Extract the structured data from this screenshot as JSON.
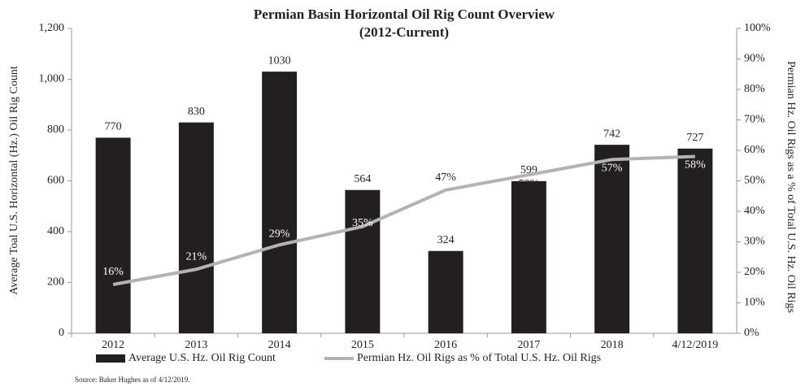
{
  "chart_data": {
    "type": "bar",
    "title": "Permian Basin Horizontal Oil Rig Count Overview",
    "subtitle": "(2012-Current)",
    "y_label": "Average Toal U.S. Horizontal (Hz.) Oil Rig Count",
    "y2_label": "Permian Hz. Oil Rigs as a % of Total U.S. Hz. Oil Rigs",
    "source": "Source: Baker Hughes as of 4/12/2019.",
    "categories": [
      "2012",
      "2013",
      "2014",
      "2015",
      "2016",
      "2017",
      "2018",
      "4/12/2019"
    ],
    "series": [
      {
        "name": "Average U.S. Hz. Oil Rig Count",
        "type": "bar",
        "color": "#231f20",
        "values": [
          770,
          830,
          1030,
          564,
          324,
          599,
          742,
          727
        ]
      },
      {
        "name": "Permian Hz. Oil Rigs as % of Total U.S. Hz. Oil Rigs",
        "type": "line",
        "color": "#b3b3b3",
        "axis": "y2",
        "values": [
          16,
          21,
          29,
          35,
          47,
          52,
          57,
          58
        ],
        "value_labels": [
          "16%",
          "21%",
          "29%",
          "35%",
          "47%",
          "52%",
          "57%",
          "58%"
        ]
      }
    ],
    "ylim": [
      0,
      1200
    ],
    "yticks": [
      0,
      200,
      400,
      600,
      800,
      {
        "value": 1000,
        "label": "1,000"
      },
      {
        "value": 1200,
        "label": "1,200"
      }
    ],
    "y2lim": [
      0,
      100
    ],
    "y2ticks": [
      {
        "value": 0,
        "label": "0%"
      },
      {
        "value": 10,
        "label": "10%"
      },
      {
        "value": 20,
        "label": "20%"
      },
      {
        "value": 30,
        "label": "30%"
      },
      {
        "value": 40,
        "label": "40%"
      },
      {
        "value": 50,
        "label": "50%"
      },
      {
        "value": 60,
        "label": "60%"
      },
      {
        "value": 70,
        "label": "70%"
      },
      {
        "value": 80,
        "label": "80%"
      },
      {
        "value": 90,
        "label": "90%"
      },
      {
        "value": 100,
        "label": "100%"
      }
    ],
    "grid": false,
    "legend": "bottom"
  }
}
